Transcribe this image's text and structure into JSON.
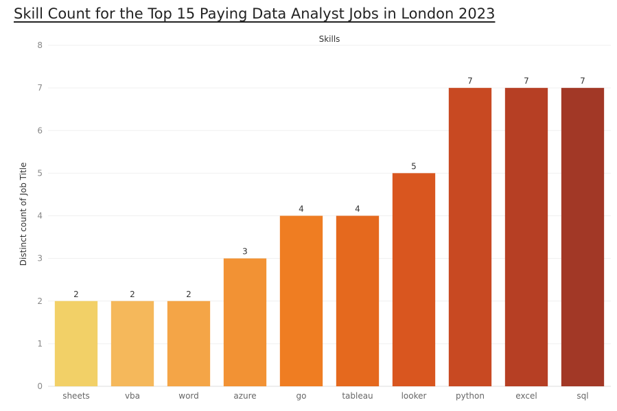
{
  "chart_data": {
    "type": "bar",
    "title": "Skill Count for the Top 15 Paying Data Analyst Jobs in London 2023",
    "column_header": "Skills",
    "ylabel": "Distinct count of Job Title",
    "xlabel": "",
    "ylim": [
      0,
      8
    ],
    "yticks": [
      "0",
      "1",
      "2",
      "3",
      "4",
      "5",
      "6",
      "7",
      "8"
    ],
    "grid": true,
    "categories": [
      "sheets",
      "vba",
      "word",
      "azure",
      "go",
      "tableau",
      "looker",
      "python",
      "excel",
      "sql"
    ],
    "values": [
      2,
      2,
      2,
      3,
      4,
      4,
      5,
      7,
      7,
      7
    ],
    "data_labels": [
      "2",
      "2",
      "2",
      "3",
      "4",
      "4",
      "5",
      "7",
      "7",
      "7"
    ],
    "colors": [
      "#F2D067",
      "#F5B85B",
      "#F4A547",
      "#F29234",
      "#EF7D22",
      "#E5691E",
      "#D9561F",
      "#C84922",
      "#B63F24",
      "#A23826"
    ]
  }
}
